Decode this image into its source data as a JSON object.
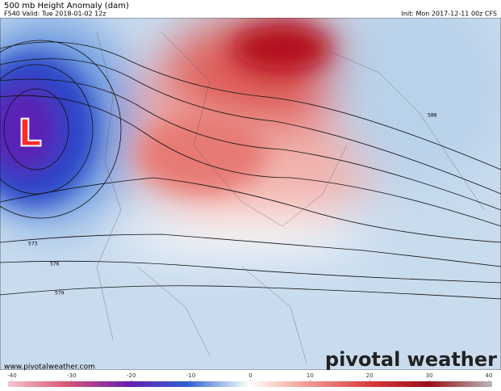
{
  "header": {
    "title": "500 mb Height Anomaly (dam)",
    "valid": "F540 Valid: Tue 2018-01-02 12z",
    "init": "Init: Mon 2017-12-11 00z CFS"
  },
  "map": {
    "low_label": "L",
    "contour_labels": [
      "573",
      "576",
      "579",
      "588"
    ]
  },
  "footer": {
    "website": "www.pivotalweather.com",
    "logo": "pivotal weather"
  },
  "colorbar": {
    "range": [
      -40,
      40
    ],
    "ticks": [
      -40,
      -30,
      -20,
      -10,
      0,
      10,
      20,
      30,
      40
    ]
  }
}
